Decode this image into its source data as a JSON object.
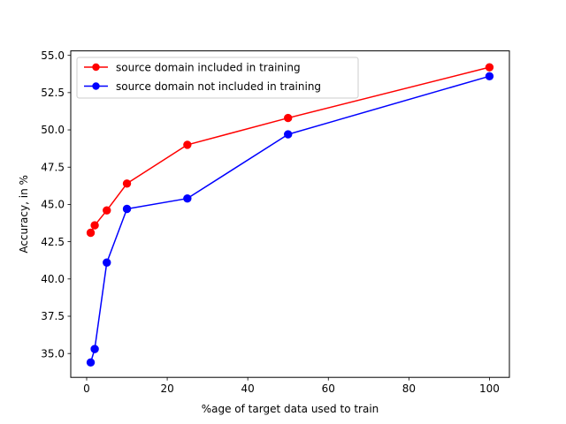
{
  "chart_data": {
    "type": "line",
    "title": "",
    "xlabel": "%age of target data used to train",
    "ylabel": "Accuracy, in %",
    "xlim": [
      -3.95,
      104.95
    ],
    "ylim": [
      33.4,
      55.3
    ],
    "xticks": [
      0,
      20,
      40,
      60,
      80,
      100
    ],
    "xtick_labels": [
      "0",
      "20",
      "40",
      "60",
      "80",
      "100"
    ],
    "yticks": [
      35.0,
      37.5,
      40.0,
      42.5,
      45.0,
      47.5,
      50.0,
      52.5,
      55.0
    ],
    "ytick_labels": [
      "35.0",
      "37.5",
      "40.0",
      "42.5",
      "45.0",
      "47.5",
      "50.0",
      "52.5",
      "55.0"
    ],
    "grid": false,
    "legend_position": "top-left",
    "series": [
      {
        "name": "source domain included in training",
        "color": "#ff0000",
        "x": [
          1,
          2,
          5,
          10,
          25,
          50,
          100
        ],
        "values": [
          43.1,
          43.6,
          44.6,
          46.4,
          49.0,
          50.8,
          54.2
        ]
      },
      {
        "name": "source domain not included in training",
        "color": "#0000ff",
        "x": [
          1,
          2,
          5,
          10,
          25,
          50,
          100
        ],
        "values": [
          34.4,
          35.3,
          41.1,
          44.7,
          45.4,
          49.7,
          53.6
        ]
      }
    ]
  }
}
